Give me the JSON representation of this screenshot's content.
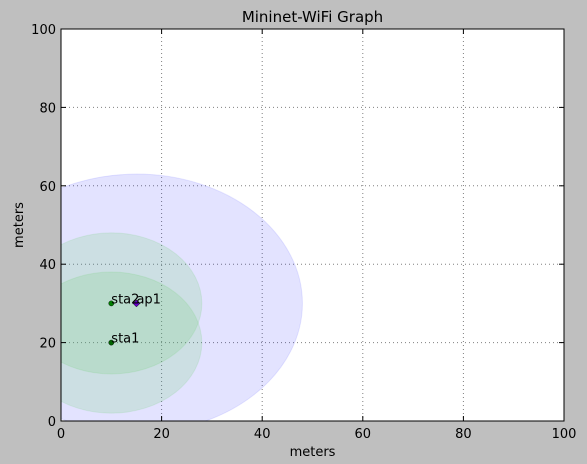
{
  "chart_data": {
    "type": "scatter",
    "title": "Mininet-WiFi Graph",
    "xlabel": "meters",
    "ylabel": "meters",
    "xlim": [
      0,
      100
    ],
    "ylim": [
      0,
      100
    ],
    "xticks": [
      0,
      20,
      40,
      60,
      80,
      100
    ],
    "yticks": [
      0,
      20,
      40,
      60,
      80,
      100
    ],
    "grid": true,
    "colors": {
      "background": "#bfbfbf",
      "plot_area": "#ffffff",
      "grid": "#808080"
    },
    "range_circles": [
      {
        "node": "ap1",
        "center": [
          15,
          30
        ],
        "radius": 33,
        "color": "#0000ff",
        "opacity": 0.11
      },
      {
        "node": "sta2",
        "center": [
          10,
          30
        ],
        "radius": 18,
        "color": "#66cc66",
        "opacity": 0.18
      },
      {
        "node": "sta1",
        "center": [
          10,
          20
        ],
        "radius": 18,
        "color": "#66cc66",
        "opacity": 0.18
      }
    ],
    "nodes": [
      {
        "label": "sta1",
        "x": 10,
        "y": 20,
        "color": "#006400",
        "marker": "circle"
      },
      {
        "label": "sta2",
        "x": 10,
        "y": 30,
        "color": "#008000",
        "marker": "circle"
      },
      {
        "label": "ap1",
        "x": 15,
        "y": 30,
        "color": "#6600cc",
        "marker": "diamond"
      }
    ]
  }
}
